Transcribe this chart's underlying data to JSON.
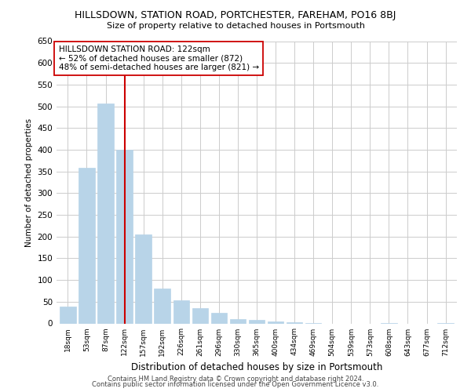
{
  "title": "HILLSDOWN, STATION ROAD, PORTCHESTER, FAREHAM, PO16 8BJ",
  "subtitle": "Size of property relative to detached houses in Portsmouth",
  "xlabel": "Distribution of detached houses by size in Portsmouth",
  "ylabel": "Number of detached properties",
  "bar_color": "#b8d4e8",
  "bar_edge_color": "#b8d4e8",
  "vline_x_index": 3,
  "vline_color": "#cc0000",
  "annotation_text": "HILLSDOWN STATION ROAD: 122sqm\n← 52% of detached houses are smaller (872)\n48% of semi-detached houses are larger (821) →",
  "annotation_box_color": "white",
  "annotation_box_edge": "#cc0000",
  "categories": [
    "18sqm",
    "53sqm",
    "87sqm",
    "122sqm",
    "157sqm",
    "192sqm",
    "226sqm",
    "261sqm",
    "296sqm",
    "330sqm",
    "365sqm",
    "400sqm",
    "434sqm",
    "469sqm",
    "504sqm",
    "539sqm",
    "573sqm",
    "608sqm",
    "643sqm",
    "677sqm",
    "712sqm"
  ],
  "values": [
    38,
    358,
    507,
    400,
    205,
    80,
    53,
    35,
    25,
    10,
    8,
    4,
    2,
    1,
    0,
    0,
    0,
    1,
    0,
    0,
    1
  ],
  "ylim": [
    0,
    650
  ],
  "yticks": [
    0,
    50,
    100,
    150,
    200,
    250,
    300,
    350,
    400,
    450,
    500,
    550,
    600,
    650
  ],
  "background_color": "#ffffff",
  "grid_color": "#cccccc",
  "footer_line1": "Contains HM Land Registry data © Crown copyright and database right 2024.",
  "footer_line2": "Contains public sector information licensed under the Open Government Licence v3.0."
}
